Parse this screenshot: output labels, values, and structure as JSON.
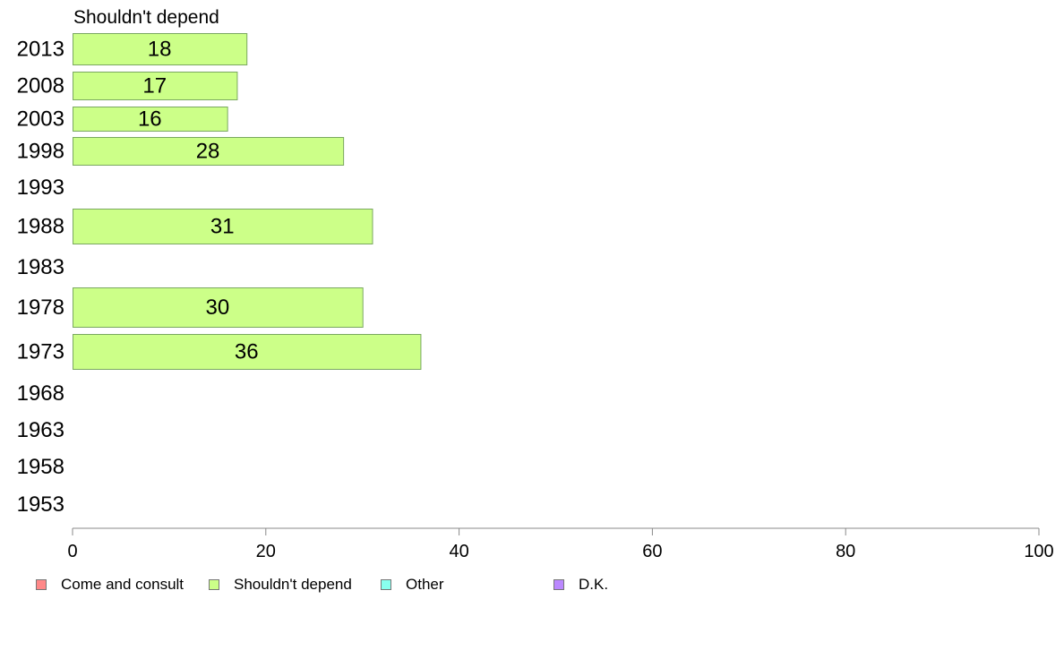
{
  "chart_data": {
    "type": "bar",
    "orientation": "horizontal",
    "title": "Shouldn't depend",
    "categories": [
      "2013",
      "2008",
      "2003",
      "1998",
      "1993",
      "1988",
      "1983",
      "1978",
      "1973",
      "1968",
      "1963",
      "1958",
      "1953"
    ],
    "series": [
      {
        "name": "Shouldn't depend",
        "color": "#ccff88",
        "values": [
          18,
          17,
          16,
          28,
          null,
          31,
          null,
          30,
          36,
          null,
          null,
          null,
          null
        ]
      }
    ],
    "xlim": [
      0,
      100
    ],
    "xticks": [
      "0",
      "20",
      "40",
      "60",
      "80",
      "100"
    ],
    "grid": false,
    "legend_position": "bottom-left"
  },
  "legend": [
    {
      "label": "Come and consult",
      "color": "#ff8888"
    },
    {
      "label": "Shouldn't depend",
      "color": "#ccff88"
    },
    {
      "label": "Other",
      "color": "#88ffee"
    },
    {
      "label": "D.K.",
      "color": "#bb88ff"
    }
  ]
}
